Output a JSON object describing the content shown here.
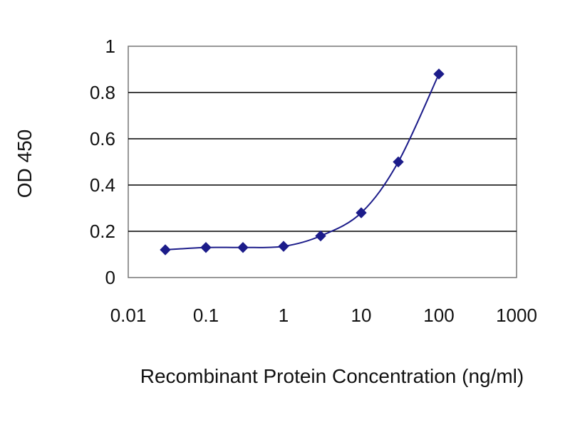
{
  "chart_data": {
    "type": "line",
    "xlabel": "Recombinant Protein Concentration (ng/ml)",
    "ylabel": "OD 450",
    "x_scale": "log",
    "xlim": [
      0.01,
      1000
    ],
    "ylim": [
      0,
      1
    ],
    "x_ticks": [
      0.01,
      0.1,
      1,
      10,
      100,
      1000
    ],
    "x_tick_labels": [
      "0.01",
      "0.1",
      "1",
      "10",
      "100",
      "1000"
    ],
    "y_ticks": [
      0,
      0.2,
      0.4,
      0.6,
      0.8,
      1
    ],
    "y_tick_labels": [
      "0",
      "0.2",
      "0.4",
      "0.6",
      "0.8",
      "1"
    ],
    "grid": "horizontal",
    "legend": "none",
    "series": [
      {
        "x": [
          0.03,
          0.1,
          0.3,
          1,
          3,
          10,
          30,
          100
        ],
        "y": [
          0.12,
          0.13,
          0.13,
          0.135,
          0.18,
          0.28,
          0.5,
          0.88
        ],
        "marker": "diamond",
        "color": "#1c1c8a"
      }
    ],
    "colors": {
      "line": "#1c1c8a",
      "marker": "#1c1c8a",
      "plot_background": "#ffffff",
      "grid": "#000000"
    }
  }
}
